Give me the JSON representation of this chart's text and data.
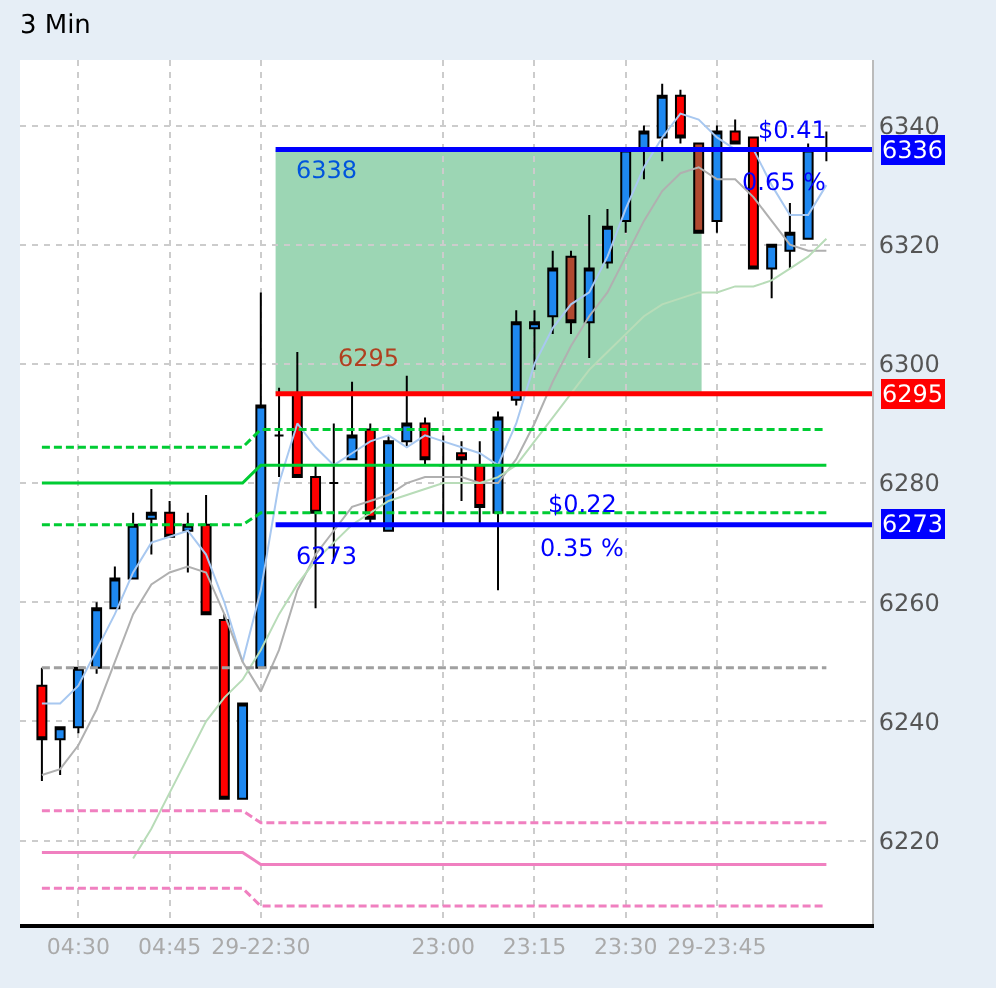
{
  "chart_data": {
    "type": "candlestick",
    "title": "3 Min",
    "categories": [
      null,
      null,
      "04:30",
      null,
      null,
      null,
      null,
      "04:45",
      null,
      null,
      null,
      null,
      "29-22:30",
      null,
      null,
      null,
      null,
      null,
      null,
      null,
      null,
      null,
      "23:00",
      null,
      null,
      null,
      null,
      "23:15",
      null,
      null,
      null,
      null,
      "23:30",
      null,
      null,
      null,
      null,
      "29-23:45",
      null,
      null,
      null,
      null,
      null,
      null
    ],
    "ohlc": [
      [
        6246,
        6249,
        6230,
        6237
      ],
      [
        6237,
        6239,
        6231,
        6239
      ],
      [
        6239,
        6249,
        6238,
        6249
      ],
      [
        6249,
        6260,
        6248,
        6259
      ],
      [
        6259,
        6266,
        6259,
        6264
      ],
      [
        6264,
        6275,
        6264,
        6273
      ],
      [
        6274,
        6279,
        6268,
        6275
      ],
      [
        6275,
        6277,
        6271,
        6271
      ],
      [
        6272,
        6275,
        6265,
        6273
      ],
      [
        6273,
        6278,
        6258,
        6258
      ],
      [
        6257,
        6258,
        6227,
        6227
      ],
      [
        6227,
        6243,
        6227,
        6243
      ],
      [
        6249,
        6312,
        6249,
        6293
      ],
      [
        6288,
        6296,
        6281,
        6288
      ],
      [
        6295,
        6302,
        6281,
        6281
      ],
      [
        6281,
        6283,
        6259,
        6275
      ],
      [
        6280,
        6290,
        6267,
        6280
      ],
      [
        6284,
        6297,
        6284,
        6288
      ],
      [
        6289,
        6290,
        6273,
        6274
      ],
      [
        6272,
        6288,
        6272,
        6287
      ],
      [
        6287,
        6298,
        6286,
        6290
      ],
      [
        6290,
        6291,
        6283,
        6284
      ],
      [
        6283,
        6288,
        6273,
        6283
      ],
      [
        6285,
        6287,
        6277,
        6284
      ],
      [
        6283,
        6287,
        6273,
        6276
      ],
      [
        6275,
        6292,
        6262,
        6291
      ],
      [
        6294,
        6309,
        6293,
        6307
      ],
      [
        6306,
        6309,
        6299,
        6307
      ],
      [
        6308,
        6319,
        6305,
        6316
      ],
      [
        6318,
        6319,
        6305,
        6307
      ],
      [
        6307,
        6325,
        6301,
        6316
      ],
      [
        6317,
        6326,
        6316,
        6323
      ],
      [
        6324,
        6336,
        6322,
        6336
      ],
      [
        6336,
        6340,
        6331,
        6339
      ],
      [
        6338,
        6347,
        6334,
        6345
      ],
      [
        6345,
        6346,
        6337,
        6338
      ],
      [
        6337,
        6337,
        6322,
        6322
      ],
      [
        6324,
        6340,
        6322,
        6339
      ],
      [
        6339,
        6341,
        6337,
        6337
      ],
      [
        6338,
        6338,
        6316,
        6316
      ],
      [
        6316,
        6320,
        6311,
        6320
      ],
      [
        6319,
        6327,
        6316,
        6322
      ],
      [
        6321,
        6337,
        6321,
        6336
      ],
      [
        6336,
        6339,
        6334,
        6336
      ]
    ],
    "colors": [
      "#ff0000",
      "#1e88f0",
      "#1e88f0",
      "#1e88f0",
      "#1e88f0",
      "#1e88f0",
      "#1e88f0",
      "#ff0000",
      "#1e88f0",
      "#ff0000",
      "#ff0000",
      "#1e88f0",
      "#1e88f0",
      "#000000",
      "#ff0000",
      "#ff0000",
      "#000000",
      "#1e88f0",
      "#ff0000",
      "#1e88f0",
      "#1e88f0",
      "#ff0000",
      "#000000",
      "#ff0000",
      "#ff0000",
      "#1e88f0",
      "#1e88f0",
      "#1e88f0",
      "#1e88f0",
      "#b04a30",
      "#1e88f0",
      "#1e88f0",
      "#1e88f0",
      "#1e88f0",
      "#1e88f0",
      "#ff0000",
      "#b04a30",
      "#1e88f0",
      "#ff0000",
      "#ff0000",
      "#1e88f0",
      "#1e88f0",
      "#1e88f0",
      "#000000"
    ],
    "series": [
      {
        "type": "line",
        "color": "#a8c8f0",
        "values": [
          6243,
          6243,
          6246,
          6252,
          6258,
          6265,
          6270,
          6271,
          6272,
          6268,
          6260,
          6250,
          6262,
          6280,
          6290,
          6286,
          6283,
          6285,
          6287,
          6288,
          6286,
          6288,
          6287,
          6286,
          6285,
          6283,
          6290,
          6300,
          6306,
          6310,
          6312,
          6318,
          6326,
          6333,
          6338,
          6342,
          6341,
          6338,
          6336,
          6336,
          6330,
          6325,
          6325,
          6330
        ]
      },
      {
        "type": "line",
        "color": "#b0b0b0",
        "values": [
          6231,
          6232,
          6236,
          6242,
          6250,
          6258,
          6263,
          6265,
          6266,
          6265,
          6258,
          6250,
          6245,
          6252,
          6262,
          6268,
          6272,
          6276,
          6277,
          6278,
          6280,
          6281,
          6281,
          6281,
          6280,
          6280,
          6284,
          6290,
          6297,
          6303,
          6308,
          6312,
          6318,
          6324,
          6329,
          6332,
          6333,
          6331,
          6331,
          6328,
          6324,
          6320,
          6319,
          6319
        ]
      },
      {
        "type": "line",
        "color": "#b8dcb8",
        "values": [
          null,
          null,
          null,
          null,
          null,
          6217,
          6222,
          6228,
          6234,
          6240,
          6244,
          6247,
          6252,
          6258,
          6263,
          6267,
          6270,
          6273,
          6275,
          6277,
          6278,
          6279,
          6280,
          6280,
          6280,
          6281,
          6283,
          6287,
          6291,
          6295,
          6299,
          6302,
          6305,
          6308,
          6310,
          6311,
          6312,
          6312,
          6313,
          6313,
          6314,
          6316,
          6318,
          6321
        ]
      },
      {
        "type": "line",
        "color": "#00cc33",
        "line_style": "dashed",
        "values": [
          6286,
          6286,
          6286,
          6286,
          6286,
          6286,
          6286,
          6286,
          6286,
          6286,
          6286,
          6286,
          6289,
          6289,
          6289,
          6289,
          6289,
          6289,
          6289,
          6289,
          6289,
          6289,
          6289,
          6289,
          6289,
          6289,
          6289,
          6289,
          6289,
          6289,
          6289,
          6289,
          6289,
          6289,
          6289,
          6289,
          6289,
          6289,
          6289,
          6289,
          6289,
          6289,
          6289,
          6289
        ]
      },
      {
        "type": "line",
        "color": "#00cc33",
        "line_style": "solid",
        "values": [
          6280,
          6280,
          6280,
          6280,
          6280,
          6280,
          6280,
          6280,
          6280,
          6280,
          6280,
          6280,
          6283,
          6283,
          6283,
          6283,
          6283,
          6283,
          6283,
          6283,
          6283,
          6283,
          6283,
          6283,
          6283,
          6283,
          6283,
          6283,
          6283,
          6283,
          6283,
          6283,
          6283,
          6283,
          6283,
          6283,
          6283,
          6283,
          6283,
          6283,
          6283,
          6283,
          6283,
          6283
        ]
      },
      {
        "type": "line",
        "color": "#00cc33",
        "line_style": "dashed",
        "values": [
          6273,
          6273,
          6273,
          6273,
          6273,
          6273,
          6273,
          6273,
          6273,
          6273,
          6273,
          6273,
          6275,
          6275,
          6275,
          6275,
          6275,
          6275,
          6275,
          6275,
          6275,
          6275,
          6275,
          6275,
          6275,
          6275,
          6275,
          6275,
          6275,
          6275,
          6275,
          6275,
          6275,
          6275,
          6275,
          6275,
          6275,
          6275,
          6275,
          6275,
          6275,
          6275,
          6275,
          6275
        ]
      },
      {
        "type": "line",
        "color": "#a0a0a0",
        "line_style": "dashed",
        "values": [
          6249,
          6249,
          6249,
          6249,
          6249,
          6249,
          6249,
          6249,
          6249,
          6249,
          6249,
          6249,
          6249,
          6249,
          6249,
          6249,
          6249,
          6249,
          6249,
          6249,
          6249,
          6249,
          6249,
          6249,
          6249,
          6249,
          6249,
          6249,
          6249,
          6249,
          6249,
          6249,
          6249,
          6249,
          6249,
          6249,
          6249,
          6249,
          6249,
          6249,
          6249,
          6249,
          6249,
          6249
        ]
      },
      {
        "type": "line",
        "color": "#f080c0",
        "line_style": "dashed",
        "values": [
          6225,
          6225,
          6225,
          6225,
          6225,
          6225,
          6225,
          6225,
          6225,
          6225,
          6225,
          6225,
          6223,
          6223,
          6223,
          6223,
          6223,
          6223,
          6223,
          6223,
          6223,
          6223,
          6223,
          6223,
          6223,
          6223,
          6223,
          6223,
          6223,
          6223,
          6223,
          6223,
          6223,
          6223,
          6223,
          6223,
          6223,
          6223,
          6223,
          6223,
          6223,
          6223,
          6223,
          6223
        ]
      },
      {
        "type": "line",
        "color": "#f080c0",
        "line_style": "solid",
        "values": [
          6218,
          6218,
          6218,
          6218,
          6218,
          6218,
          6218,
          6218,
          6218,
          6218,
          6218,
          6218,
          6216,
          6216,
          6216,
          6216,
          6216,
          6216,
          6216,
          6216,
          6216,
          6216,
          6216,
          6216,
          6216,
          6216,
          6216,
          6216,
          6216,
          6216,
          6216,
          6216,
          6216,
          6216,
          6216,
          6216,
          6216,
          6216,
          6216,
          6216,
          6216,
          6216,
          6216,
          6216
        ]
      },
      {
        "type": "line",
        "color": "#f080c0",
        "line_style": "dashed",
        "values": [
          6212,
          6212,
          6212,
          6212,
          6212,
          6212,
          6212,
          6212,
          6212,
          6212,
          6212,
          6212,
          6209,
          6209,
          6209,
          6209,
          6209,
          6209,
          6209,
          6209,
          6209,
          6209,
          6209,
          6209,
          6209,
          6209,
          6209,
          6209,
          6209,
          6209,
          6209,
          6209,
          6209,
          6209,
          6209,
          6209,
          6209,
          6209,
          6209,
          6209,
          6209,
          6209,
          6209,
          6209
        ]
      }
    ],
    "ref_lines": [
      {
        "axis": "y",
        "value": 6336,
        "label": "6336",
        "color": "#0000ff"
      },
      {
        "axis": "y",
        "value": 6295,
        "label": "6295",
        "color": "#ff0000"
      },
      {
        "axis": "y",
        "value": 6273,
        "label": "6273",
        "color": "#0000ff"
      }
    ],
    "bands": [
      {
        "axis": "y",
        "from": 6295,
        "to": 6336,
        "color": "#9cd6b4"
      }
    ],
    "annotations": [
      {
        "text": "6338",
        "y": 6336
      },
      {
        "text": "6295",
        "y": 6295
      },
      {
        "text": "6273",
        "y": 6273
      },
      {
        "text": "$0.41",
        "y": 6336
      },
      {
        "text": "0.65 %",
        "y": 6336
      },
      {
        "text": "$0.22",
        "y": 6273
      },
      {
        "text": "0.35 %",
        "y": 6273
      }
    ],
    "ylim": [
      6206,
      6351
    ],
    "yticks": [
      6220,
      6240,
      6260,
      6280,
      6300,
      6320,
      6340
    ],
    "grid": true
  }
}
